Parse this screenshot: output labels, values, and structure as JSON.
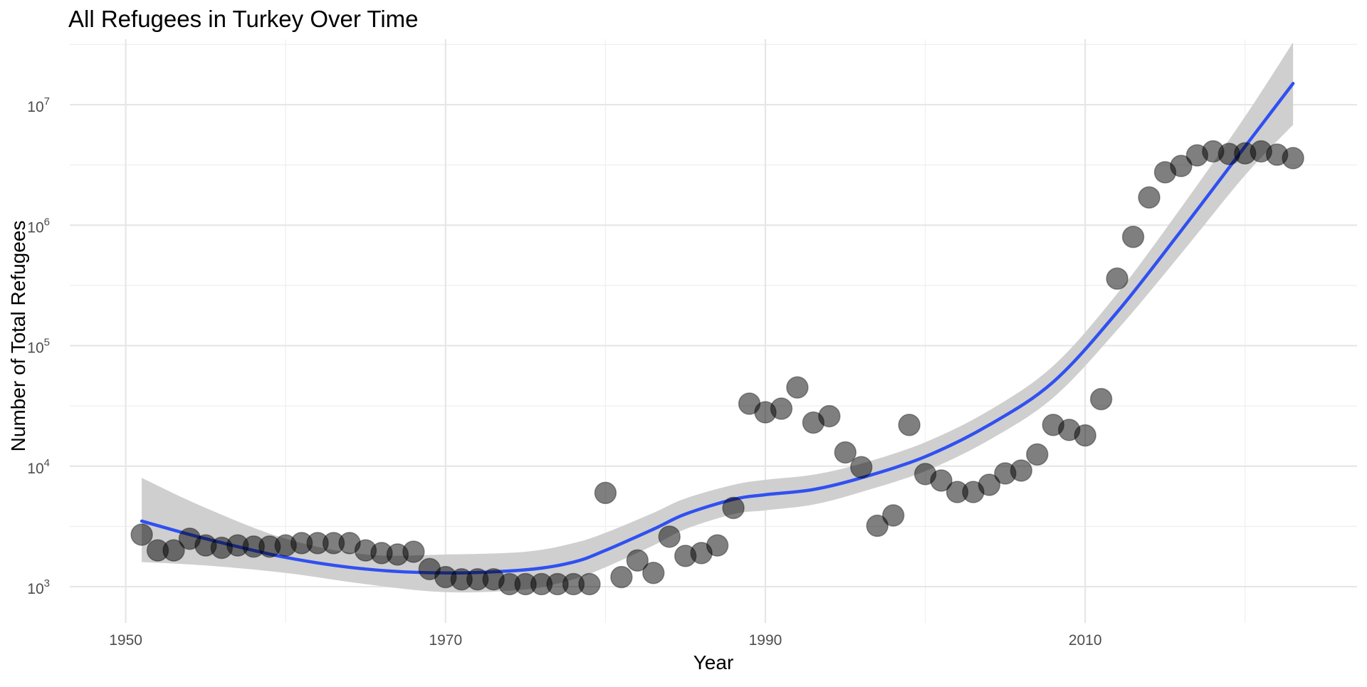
{
  "chart_data": {
    "type": "scatter",
    "title": "All Refugees in Turkey Over Time",
    "xlabel": "Year",
    "ylabel": "Number of Total Refugees",
    "x_scale": "linear",
    "y_scale": "log10",
    "xlim": [
      1946.5,
      2027
    ],
    "ylim": [
      500,
      35000000
    ],
    "x_ticks": [
      {
        "value": 1950,
        "label": "1950"
      },
      {
        "value": 1970,
        "label": "1970"
      },
      {
        "value": 1990,
        "label": "1990"
      },
      {
        "value": 2010,
        "label": "2010"
      }
    ],
    "y_ticks": [
      {
        "value": 1000,
        "base": "10",
        "exp": "3"
      },
      {
        "value": 10000,
        "base": "10",
        "exp": "4"
      },
      {
        "value": 100000,
        "base": "10",
        "exp": "5"
      },
      {
        "value": 1000000,
        "base": "10",
        "exp": "6"
      },
      {
        "value": 10000000,
        "base": "10",
        "exp": "7"
      }
    ],
    "grid": true,
    "colors": {
      "points": "#000000",
      "point_opacity": 0.5,
      "smooth_line": "#3050F0",
      "confidence_band": "#cccccc",
      "grid_major": "#e6e6e6",
      "grid_minor": "#f0f0f0"
    },
    "points": [
      {
        "x": 1951,
        "y": 2700
      },
      {
        "x": 1952,
        "y": 2000
      },
      {
        "x": 1953,
        "y": 2000
      },
      {
        "x": 1954,
        "y": 2500
      },
      {
        "x": 1955,
        "y": 2200
      },
      {
        "x": 1956,
        "y": 2100
      },
      {
        "x": 1957,
        "y": 2200
      },
      {
        "x": 1958,
        "y": 2150
      },
      {
        "x": 1959,
        "y": 2150
      },
      {
        "x": 1960,
        "y": 2200
      },
      {
        "x": 1961,
        "y": 2300
      },
      {
        "x": 1962,
        "y": 2300
      },
      {
        "x": 1963,
        "y": 2300
      },
      {
        "x": 1964,
        "y": 2300
      },
      {
        "x": 1965,
        "y": 2000
      },
      {
        "x": 1966,
        "y": 1900
      },
      {
        "x": 1967,
        "y": 1850
      },
      {
        "x": 1968,
        "y": 1950
      },
      {
        "x": 1969,
        "y": 1400
      },
      {
        "x": 1970,
        "y": 1200
      },
      {
        "x": 1971,
        "y": 1150
      },
      {
        "x": 1972,
        "y": 1150
      },
      {
        "x": 1973,
        "y": 1150
      },
      {
        "x": 1974,
        "y": 1050
      },
      {
        "x": 1975,
        "y": 1050
      },
      {
        "x": 1976,
        "y": 1050
      },
      {
        "x": 1977,
        "y": 1050
      },
      {
        "x": 1978,
        "y": 1050
      },
      {
        "x": 1979,
        "y": 1050
      },
      {
        "x": 1980,
        "y": 6000
      },
      {
        "x": 1981,
        "y": 1200
      },
      {
        "x": 1982,
        "y": 1650
      },
      {
        "x": 1983,
        "y": 1300
      },
      {
        "x": 1984,
        "y": 2600
      },
      {
        "x": 1985,
        "y": 1800
      },
      {
        "x": 1986,
        "y": 1900
      },
      {
        "x": 1987,
        "y": 2200
      },
      {
        "x": 1988,
        "y": 4500
      },
      {
        "x": 1989,
        "y": 33000
      },
      {
        "x": 1990,
        "y": 28000
      },
      {
        "x": 1991,
        "y": 30000
      },
      {
        "x": 1992,
        "y": 45000
      },
      {
        "x": 1993,
        "y": 23000
      },
      {
        "x": 1994,
        "y": 26000
      },
      {
        "x": 1995,
        "y": 13000
      },
      {
        "x": 1996,
        "y": 9800
      },
      {
        "x": 1997,
        "y": 3200
      },
      {
        "x": 1998,
        "y": 3900
      },
      {
        "x": 1999,
        "y": 22000
      },
      {
        "x": 2000,
        "y": 8600
      },
      {
        "x": 2001,
        "y": 7600
      },
      {
        "x": 2002,
        "y": 6100
      },
      {
        "x": 2003,
        "y": 6100
      },
      {
        "x": 2004,
        "y": 7000
      },
      {
        "x": 2005,
        "y": 8700
      },
      {
        "x": 2006,
        "y": 9200
      },
      {
        "x": 2007,
        "y": 12500
      },
      {
        "x": 2008,
        "y": 22000
      },
      {
        "x": 2009,
        "y": 20000
      },
      {
        "x": 2010,
        "y": 18000
      },
      {
        "x": 2011,
        "y": 36000
      },
      {
        "x": 2012,
        "y": 360000
      },
      {
        "x": 2013,
        "y": 800000
      },
      {
        "x": 2014,
        "y": 1700000
      },
      {
        "x": 2015,
        "y": 2750000
      },
      {
        "x": 2016,
        "y": 3100000
      },
      {
        "x": 2017,
        "y": 3800000
      },
      {
        "x": 2018,
        "y": 4100000
      },
      {
        "x": 2019,
        "y": 3900000
      },
      {
        "x": 2020,
        "y": 3950000
      },
      {
        "x": 2021,
        "y": 4100000
      },
      {
        "x": 2022,
        "y": 3850000
      },
      {
        "x": 2023,
        "y": 3600000
      }
    ],
    "smooth": [
      {
        "x": 1951,
        "y": 3500,
        "lo": 1600,
        "hi": 8000
      },
      {
        "x": 1955,
        "y": 2500,
        "lo": 1500,
        "hi": 4500
      },
      {
        "x": 1960,
        "y": 1750,
        "lo": 1300,
        "hi": 2500
      },
      {
        "x": 1965,
        "y": 1400,
        "lo": 1050,
        "hi": 1850
      },
      {
        "x": 1970,
        "y": 1300,
        "lo": 900,
        "hi": 1850
      },
      {
        "x": 1975,
        "y": 1380,
        "lo": 950,
        "hi": 1950
      },
      {
        "x": 1978,
        "y": 1600,
        "lo": 1150,
        "hi": 2300
      },
      {
        "x": 1980,
        "y": 2000,
        "lo": 1450,
        "hi": 2800
      },
      {
        "x": 1983,
        "y": 3000,
        "lo": 2200,
        "hi": 4100
      },
      {
        "x": 1985,
        "y": 4000,
        "lo": 3000,
        "hi": 5400
      },
      {
        "x": 1988,
        "y": 5300,
        "lo": 4000,
        "hi": 7000
      },
      {
        "x": 1990,
        "y": 5800,
        "lo": 4300,
        "hi": 7700
      },
      {
        "x": 1993,
        "y": 6400,
        "lo": 4800,
        "hi": 8500
      },
      {
        "x": 1996,
        "y": 8000,
        "lo": 6100,
        "hi": 10500
      },
      {
        "x": 2000,
        "y": 12000,
        "lo": 9100,
        "hi": 15800
      },
      {
        "x": 2004,
        "y": 22000,
        "lo": 16500,
        "hi": 29000
      },
      {
        "x": 2008,
        "y": 50000,
        "lo": 37000,
        "hi": 68000
      },
      {
        "x": 2012,
        "y": 190000,
        "lo": 135000,
        "hi": 270000
      },
      {
        "x": 2016,
        "y": 900000,
        "lo": 580000,
        "hi": 1400000
      },
      {
        "x": 2020,
        "y": 4500000,
        "lo": 2600000,
        "hi": 8000000
      },
      {
        "x": 2023,
        "y": 15000000,
        "lo": 6800000,
        "hi": 33000000
      }
    ]
  }
}
